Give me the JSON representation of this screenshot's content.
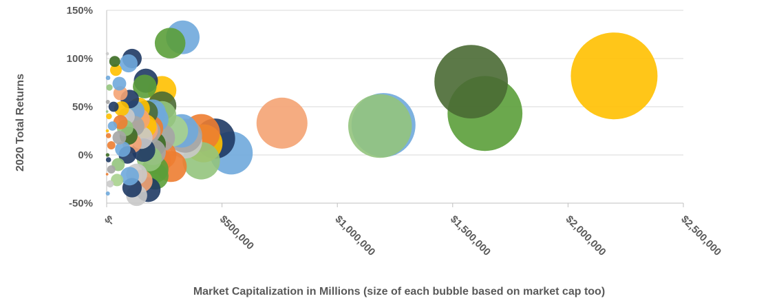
{
  "chart_data": {
    "type": "scatter",
    "title": "",
    "xlabel": "Market Capitalization in Millions (size of each bubble based on market cap too)",
    "ylabel": "2020 Total Returns",
    "xlim": [
      0,
      2500000
    ],
    "ylim": [
      -50,
      150
    ],
    "x_ticks": [
      0,
      500000,
      1000000,
      1500000,
      2000000,
      2500000
    ],
    "x_tick_labels": [
      "$-",
      "$500,000",
      "$1,000,000",
      "$1,500,000",
      "$2,000,000",
      "$2,500,000"
    ],
    "y_ticks": [
      -50,
      0,
      50,
      100,
      150
    ],
    "y_tick_labels": [
      "-50%",
      "0%",
      "50%",
      "100%",
      "150%"
    ],
    "grid": "horizontal",
    "bubble_size_basis": "market cap",
    "colors": {
      "blue": "#6fa8dc",
      "orange": "#ed7d31",
      "light_orange": "#f4a373",
      "gold": "#ffc000",
      "green": "#5b9f3a",
      "light_green": "#93c47d",
      "pale_green": "#a9d18e",
      "dark_green": "#3b6b24",
      "navy": "#1f3a64",
      "gray": "#a5a5a5",
      "light_gray": "#c9c9c9",
      "dark_olive": "#4a6a34"
    },
    "points": [
      {
        "x": 2200000,
        "y": 82,
        "color": "gold"
      },
      {
        "x": 1580000,
        "y": 76,
        "color": "dark_olive"
      },
      {
        "x": 1640000,
        "y": 43,
        "color": "green"
      },
      {
        "x": 1200000,
        "y": 31,
        "color": "blue"
      },
      {
        "x": 1185000,
        "y": 30,
        "color": "light_green"
      },
      {
        "x": 760000,
        "y": 33,
        "color": "light_orange"
      },
      {
        "x": 540000,
        "y": 2,
        "color": "blue"
      },
      {
        "x": 470000,
        "y": 17,
        "color": "navy"
      },
      {
        "x": 420000,
        "y": 12,
        "color": "gold"
      },
      {
        "x": 410000,
        "y": 23,
        "color": "orange"
      },
      {
        "x": 410000,
        "y": -6,
        "color": "light_green"
      },
      {
        "x": 340000,
        "y": 14,
        "color": "light_gray"
      },
      {
        "x": 340000,
        "y": 20,
        "color": "gray"
      },
      {
        "x": 325000,
        "y": 25,
        "color": "blue"
      },
      {
        "x": 330000,
        "y": 122,
        "color": "blue"
      },
      {
        "x": 275000,
        "y": 116,
        "color": "green"
      },
      {
        "x": 285000,
        "y": 25,
        "color": "pale_green"
      },
      {
        "x": 280000,
        "y": -12,
        "color": "orange"
      },
      {
        "x": 240000,
        "y": 67,
        "color": "gold"
      },
      {
        "x": 240000,
        "y": 51,
        "color": "dark_olive"
      },
      {
        "x": 240000,
        "y": 41,
        "color": "light_green"
      },
      {
        "x": 235000,
        "y": 18,
        "color": "gray"
      },
      {
        "x": 240000,
        "y": 0,
        "color": "orange"
      },
      {
        "x": 220000,
        "y": -6,
        "color": "orange"
      },
      {
        "x": 210000,
        "y": -15,
        "color": "green"
      },
      {
        "x": 210000,
        "y": -22,
        "color": "green"
      },
      {
        "x": 180000,
        "y": -36,
        "color": "navy"
      },
      {
        "x": 170000,
        "y": 77,
        "color": "navy"
      },
      {
        "x": 165000,
        "y": 71,
        "color": "green"
      },
      {
        "x": 200000,
        "y": 44,
        "color": "blue"
      },
      {
        "x": 210000,
        "y": 37,
        "color": "blue"
      },
      {
        "x": 170000,
        "y": 44,
        "color": "dark_olive"
      },
      {
        "x": 190000,
        "y": 28,
        "color": "orange"
      },
      {
        "x": 170000,
        "y": 26,
        "color": "light_orange"
      },
      {
        "x": 180000,
        "y": 24,
        "color": "gray"
      },
      {
        "x": 200000,
        "y": 11,
        "color": "dark_green"
      },
      {
        "x": 200000,
        "y": 3,
        "color": "gray"
      },
      {
        "x": 185000,
        "y": -4,
        "color": "light_green"
      },
      {
        "x": 165000,
        "y": 30,
        "color": "gold"
      },
      {
        "x": 160000,
        "y": 5,
        "color": "navy"
      },
      {
        "x": 150000,
        "y": -27,
        "color": "light_orange"
      },
      {
        "x": 130000,
        "y": -20,
        "color": "light_gray"
      },
      {
        "x": 130000,
        "y": -42,
        "color": "light_gray"
      },
      {
        "x": 110000,
        "y": -34,
        "color": "navy"
      },
      {
        "x": 110000,
        "y": 100,
        "color": "navy"
      },
      {
        "x": 95000,
        "y": 95,
        "color": "blue"
      },
      {
        "x": 140000,
        "y": 48,
        "color": "gold"
      },
      {
        "x": 120000,
        "y": 46,
        "color": "blue"
      },
      {
        "x": 100000,
        "y": 58,
        "color": "navy"
      },
      {
        "x": 140000,
        "y": 37,
        "color": "light_orange"
      },
      {
        "x": 150000,
        "y": 18,
        "color": "light_gray"
      },
      {
        "x": 120000,
        "y": 30,
        "color": "gray"
      },
      {
        "x": 110000,
        "y": 12,
        "color": "light_orange"
      },
      {
        "x": 95000,
        "y": 20,
        "color": "dark_green"
      },
      {
        "x": 90000,
        "y": 0,
        "color": "navy"
      },
      {
        "x": 100000,
        "y": -22,
        "color": "blue"
      },
      {
        "x": 85000,
        "y": 40,
        "color": "light_gray"
      },
      {
        "x": 80000,
        "y": 28,
        "color": "light_green"
      },
      {
        "x": 70000,
        "y": 6,
        "color": "blue"
      },
      {
        "x": 60000,
        "y": 64,
        "color": "light_orange"
      },
      {
        "x": 55000,
        "y": 74,
        "color": "blue"
      },
      {
        "x": 65000,
        "y": 48,
        "color": "gold"
      },
      {
        "x": 60000,
        "y": 34,
        "color": "orange"
      },
      {
        "x": 55000,
        "y": 18,
        "color": "gray"
      },
      {
        "x": 50000,
        "y": -10,
        "color": "light_green"
      },
      {
        "x": 45000,
        "y": -26,
        "color": "pale_green"
      },
      {
        "x": 40000,
        "y": 88,
        "color": "gold"
      },
      {
        "x": 35000,
        "y": 97,
        "color": "dark_green"
      },
      {
        "x": 30000,
        "y": 50,
        "color": "navy"
      },
      {
        "x": 25000,
        "y": 30,
        "color": "blue"
      },
      {
        "x": 20000,
        "y": 10,
        "color": "orange"
      },
      {
        "x": 20000,
        "y": -15,
        "color": "gray"
      },
      {
        "x": 15000,
        "y": -30,
        "color": "light_gray"
      },
      {
        "x": 12000,
        "y": 70,
        "color": "light_green"
      },
      {
        "x": 10000,
        "y": 40,
        "color": "gold"
      },
      {
        "x": 8000,
        "y": -5,
        "color": "navy"
      },
      {
        "x": 8000,
        "y": 20,
        "color": "orange"
      },
      {
        "x": 6000,
        "y": 80,
        "color": "blue"
      },
      {
        "x": 5000,
        "y": -40,
        "color": "blue"
      },
      {
        "x": 5000,
        "y": 55,
        "color": "gray"
      },
      {
        "x": 4000,
        "y": 0,
        "color": "dark_green"
      },
      {
        "x": 3000,
        "y": 25,
        "color": "gold"
      },
      {
        "x": 3000,
        "y": 105,
        "color": "light_gray"
      },
      {
        "x": 2000,
        "y": -20,
        "color": "orange"
      },
      {
        "x": 2000,
        "y": 45,
        "color": "light_green"
      }
    ]
  }
}
